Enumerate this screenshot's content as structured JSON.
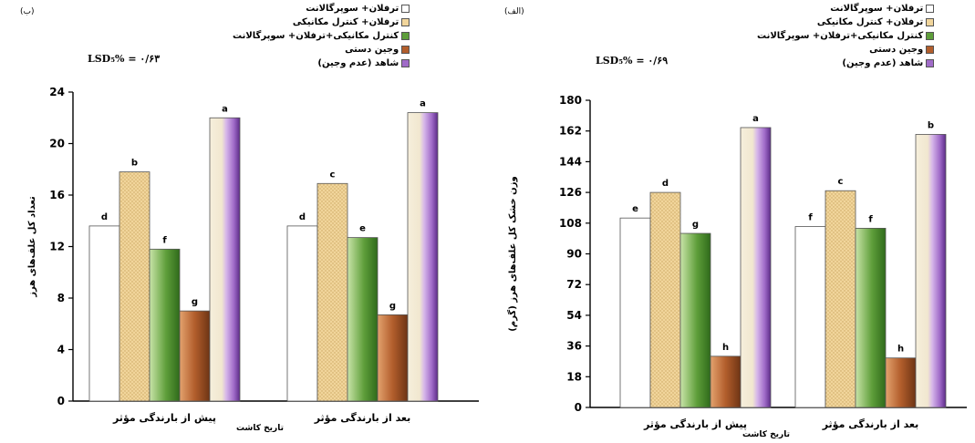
{
  "legend_items": [
    {
      "label": "ترفلان+ سوپرگالانت",
      "fill": "none"
    },
    {
      "label": "ترفلان+ کنترل مکانیکی",
      "fill": "dots"
    },
    {
      "label": "کنترل مکانیکی+ترفلان+ سوپرگالانت",
      "fill": "green"
    },
    {
      "label": "وجین دستی",
      "fill": "brown"
    },
    {
      "label": "شاهد (عدم وجین)",
      "fill": "purple"
    }
  ],
  "colors": {
    "white_bar": "#ffffff",
    "tan_bar": "#f1d59b",
    "green_bar": "#5e9e3a",
    "brown_bar": "#b25e2c",
    "purple_bar": "#a06bc8"
  },
  "chart_data": [
    {
      "type": "bar",
      "panel_label": "(ب)",
      "lsd": "LSD₅% = ۰/۶۳",
      "ylabel": "تعداد کل علف‌های هرز",
      "xlabel": "تاریخ کاشت",
      "ylim": [
        0,
        24
      ],
      "yticks": [
        0,
        4,
        8,
        12,
        16,
        20,
        24
      ],
      "categories": [
        "پیش از بارندگی مؤثر",
        "بعد از بارندگی مؤثر"
      ],
      "series": [
        {
          "name": "ترفلان+ سوپرگالانت",
          "values": [
            13.6,
            13.6
          ],
          "letters": [
            "d",
            "d"
          ]
        },
        {
          "name": "ترفلان+ کنترل مکانیکی",
          "values": [
            17.8,
            16.9
          ],
          "letters": [
            "b",
            "c"
          ]
        },
        {
          "name": "کنترل مکانیکی+ترفلان+ سوپرگالانت",
          "values": [
            11.8,
            12.7
          ],
          "letters": [
            "f",
            "e"
          ]
        },
        {
          "name": "وجین دستی",
          "values": [
            7.0,
            6.7
          ],
          "letters": [
            "g",
            "g"
          ]
        },
        {
          "name": "شاهد (عدم وجین)",
          "values": [
            22.0,
            22.4
          ],
          "letters": [
            "a",
            "a"
          ]
        }
      ]
    },
    {
      "type": "bar",
      "panel_label": "(الف)",
      "lsd": "LSD₅% = ۰/۶۹",
      "ylabel": "وزن خشک کل علف‌های هرز (گرم)",
      "xlabel": "تاریخ کاشت",
      "ylim": [
        0,
        180
      ],
      "yticks": [
        0,
        18,
        36,
        54,
        72,
        90,
        108,
        126,
        144,
        162,
        180
      ],
      "categories": [
        "پیش از بارندگی مؤثر",
        "بعد از بارندگی مؤثر"
      ],
      "series": [
        {
          "name": "ترفلان+ سوپرگالانت",
          "values": [
            111,
            106
          ],
          "letters": [
            "e",
            "f"
          ]
        },
        {
          "name": "ترفلان+ کنترل مکانیکی",
          "values": [
            126,
            127
          ],
          "letters": [
            "d",
            "c"
          ]
        },
        {
          "name": "کنترل مکانیکی+ترفلان+ سوپرگالانت",
          "values": [
            102,
            105
          ],
          "letters": [
            "g",
            "f"
          ]
        },
        {
          "name": "وجین دستی",
          "values": [
            30,
            29
          ],
          "letters": [
            "h",
            "h"
          ]
        },
        {
          "name": "شاهد (عدم وجین)",
          "values": [
            164,
            160
          ],
          "letters": [
            "a",
            "b"
          ]
        }
      ]
    }
  ]
}
